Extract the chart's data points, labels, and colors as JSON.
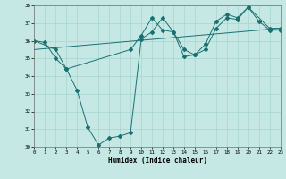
{
  "xlabel": "Humidex (Indice chaleur)",
  "xlim": [
    0,
    23
  ],
  "ylim": [
    30,
    38
  ],
  "yticks": [
    30,
    31,
    32,
    33,
    34,
    35,
    36,
    37,
    38
  ],
  "xticks": [
    0,
    1,
    2,
    3,
    4,
    5,
    6,
    7,
    8,
    9,
    10,
    11,
    12,
    13,
    14,
    15,
    16,
    17,
    18,
    19,
    20,
    21,
    22,
    23
  ],
  "bg_color": "#c5e8e4",
  "grid_color": "#a8d5d0",
  "line_color": "#1a7070",
  "line1_x": [
    0,
    1,
    2,
    3,
    4,
    5,
    6,
    7,
    8,
    9,
    10,
    11,
    12,
    13,
    14,
    15,
    16,
    17,
    18,
    19,
    20,
    21,
    22,
    23
  ],
  "line1_y": [
    36.0,
    35.9,
    35.0,
    34.4,
    33.2,
    31.1,
    30.1,
    30.5,
    30.6,
    30.8,
    36.1,
    36.5,
    37.3,
    36.5,
    35.1,
    35.2,
    35.5,
    36.7,
    37.3,
    37.2,
    37.9,
    37.1,
    36.6,
    36.6
  ],
  "line2_x": [
    0,
    2,
    3,
    9,
    10,
    11,
    12,
    13,
    14,
    15,
    16,
    17,
    18,
    19,
    20,
    22,
    23
  ],
  "line2_y": [
    36.0,
    35.5,
    34.4,
    35.5,
    36.3,
    37.3,
    36.6,
    36.5,
    35.5,
    35.2,
    35.8,
    37.1,
    37.5,
    37.3,
    37.9,
    36.7,
    36.7
  ],
  "line3_x": [
    0,
    23
  ],
  "line3_y": [
    35.5,
    36.7
  ]
}
